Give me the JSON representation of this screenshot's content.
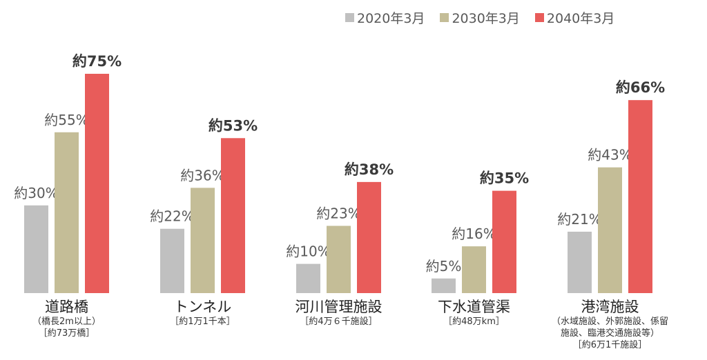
{
  "chart_data": {
    "type": "bar",
    "title": "",
    "xlabel": "",
    "ylabel": "",
    "ylim": [
      0,
      75
    ],
    "grid": false,
    "legend_position": "top-right",
    "categories": [
      "道路橋",
      "トンネル",
      "河川管理施設",
      "下水道管渠",
      "港湾施設"
    ],
    "category_notes": [
      [
        "（橋長2m以上）",
        "［約73万橋］"
      ],
      [
        "［約1万1千本］"
      ],
      [
        "［約4万６千施設］"
      ],
      [
        "［約48万km］"
      ],
      [
        "（水域施設、外郭施設、係留",
        "施設、臨港交通施設等）",
        "［約6万1千施設］"
      ]
    ],
    "series": [
      {
        "name": "2020年3月",
        "color": "#c0c0c0",
        "values": [
          30,
          22,
          10,
          5,
          21
        ],
        "labels": [
          "約30%",
          "約22%",
          "約10%",
          "約5%",
          "約21%"
        ],
        "bold": false
      },
      {
        "name": "2030年3月",
        "color": "#c4bd97",
        "values": [
          55,
          36,
          23,
          16,
          43
        ],
        "labels": [
          "約55%",
          "約36%",
          "約23%",
          "約16%",
          "約43%"
        ],
        "bold": false
      },
      {
        "name": "2040年3月",
        "color": "#e85c5a",
        "values": [
          75,
          53,
          38,
          35,
          66
        ],
        "labels": [
          "約75%",
          "約53%",
          "約38%",
          "約35%",
          "約66%"
        ],
        "bold": true
      }
    ]
  }
}
